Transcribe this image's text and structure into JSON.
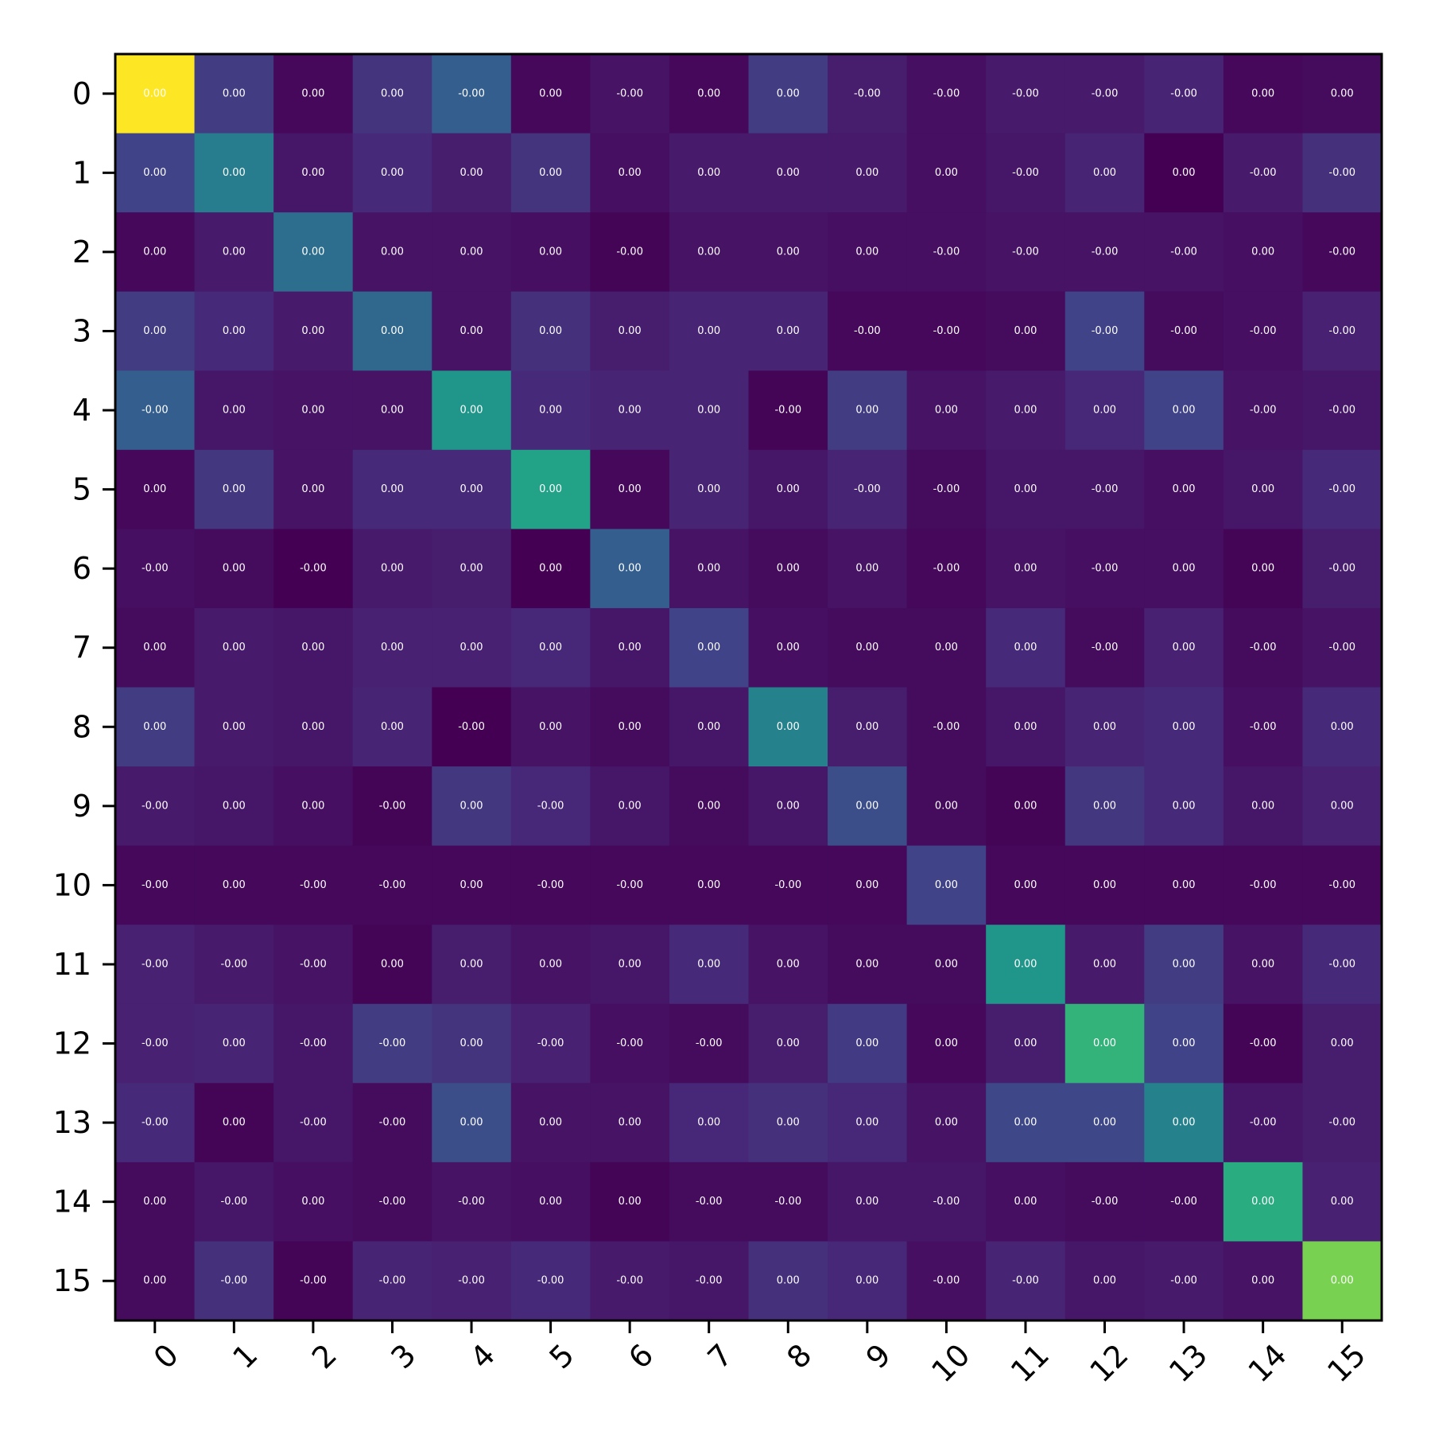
{
  "chart_data": {
    "type": "heatmap",
    "colormap": "viridis",
    "vmin": 0.0,
    "vmax": 1.0,
    "x_tick_labels": [
      "0",
      "1",
      "2",
      "3",
      "4",
      "5",
      "6",
      "7",
      "8",
      "9",
      "10",
      "11",
      "12",
      "13",
      "14",
      "15"
    ],
    "y_tick_labels": [
      "0",
      "1",
      "2",
      "3",
      "4",
      "5",
      "6",
      "7",
      "8",
      "9",
      "10",
      "11",
      "12",
      "13",
      "14",
      "15"
    ],
    "x_tick_rotation_deg": 45,
    "grid": false,
    "legend": "none",
    "labels": [
      [
        "0.00",
        "0.00",
        "0.00",
        "0.00",
        "-0.00",
        "0.00",
        "-0.00",
        "0.00",
        "0.00",
        "-0.00",
        "-0.00",
        "-0.00",
        "-0.00",
        "-0.00",
        "0.00",
        "0.00"
      ],
      [
        "0.00",
        "0.00",
        "0.00",
        "0.00",
        "0.00",
        "0.00",
        "0.00",
        "0.00",
        "0.00",
        "0.00",
        "0.00",
        "-0.00",
        "0.00",
        "0.00",
        "-0.00",
        "-0.00"
      ],
      [
        "0.00",
        "0.00",
        "0.00",
        "0.00",
        "0.00",
        "0.00",
        "-0.00",
        "0.00",
        "0.00",
        "0.00",
        "-0.00",
        "-0.00",
        "-0.00",
        "-0.00",
        "0.00",
        "-0.00"
      ],
      [
        "0.00",
        "0.00",
        "0.00",
        "0.00",
        "0.00",
        "0.00",
        "0.00",
        "0.00",
        "0.00",
        "-0.00",
        "-0.00",
        "0.00",
        "-0.00",
        "-0.00",
        "-0.00",
        "-0.00"
      ],
      [
        "-0.00",
        "0.00",
        "0.00",
        "0.00",
        "0.00",
        "0.00",
        "0.00",
        "0.00",
        "-0.00",
        "0.00",
        "0.00",
        "0.00",
        "0.00",
        "0.00",
        "-0.00",
        "-0.00"
      ],
      [
        "0.00",
        "0.00",
        "0.00",
        "0.00",
        "0.00",
        "0.00",
        "0.00",
        "0.00",
        "0.00",
        "-0.00",
        "-0.00",
        "0.00",
        "-0.00",
        "0.00",
        "0.00",
        "-0.00"
      ],
      [
        "-0.00",
        "0.00",
        "-0.00",
        "0.00",
        "0.00",
        "0.00",
        "0.00",
        "0.00",
        "0.00",
        "0.00",
        "-0.00",
        "0.00",
        "-0.00",
        "0.00",
        "0.00",
        "-0.00"
      ],
      [
        "0.00",
        "0.00",
        "0.00",
        "0.00",
        "0.00",
        "0.00",
        "0.00",
        "0.00",
        "0.00",
        "0.00",
        "0.00",
        "0.00",
        "-0.00",
        "0.00",
        "-0.00",
        "-0.00"
      ],
      [
        "0.00",
        "0.00",
        "0.00",
        "0.00",
        "-0.00",
        "0.00",
        "0.00",
        "0.00",
        "0.00",
        "0.00",
        "-0.00",
        "0.00",
        "0.00",
        "0.00",
        "-0.00",
        "0.00"
      ],
      [
        "-0.00",
        "0.00",
        "0.00",
        "-0.00",
        "0.00",
        "-0.00",
        "0.00",
        "0.00",
        "0.00",
        "0.00",
        "0.00",
        "0.00",
        "0.00",
        "0.00",
        "0.00",
        "0.00"
      ],
      [
        "-0.00",
        "0.00",
        "-0.00",
        "-0.00",
        "0.00",
        "-0.00",
        "-0.00",
        "0.00",
        "-0.00",
        "0.00",
        "0.00",
        "0.00",
        "0.00",
        "0.00",
        "-0.00",
        "-0.00"
      ],
      [
        "-0.00",
        "-0.00",
        "-0.00",
        "0.00",
        "0.00",
        "0.00",
        "0.00",
        "0.00",
        "0.00",
        "0.00",
        "0.00",
        "0.00",
        "0.00",
        "0.00",
        "0.00",
        "-0.00"
      ],
      [
        "-0.00",
        "0.00",
        "-0.00",
        "-0.00",
        "0.00",
        "-0.00",
        "-0.00",
        "-0.00",
        "0.00",
        "0.00",
        "0.00",
        "0.00",
        "0.00",
        "0.00",
        "-0.00",
        "0.00"
      ],
      [
        "-0.00",
        "0.00",
        "-0.00",
        "-0.00",
        "0.00",
        "0.00",
        "0.00",
        "0.00",
        "0.00",
        "0.00",
        "0.00",
        "0.00",
        "0.00",
        "0.00",
        "-0.00",
        "-0.00"
      ],
      [
        "0.00",
        "-0.00",
        "0.00",
        "-0.00",
        "-0.00",
        "0.00",
        "0.00",
        "-0.00",
        "-0.00",
        "0.00",
        "-0.00",
        "0.00",
        "-0.00",
        "-0.00",
        "0.00",
        "0.00"
      ],
      [
        "0.00",
        "-0.00",
        "-0.00",
        "-0.00",
        "-0.00",
        "-0.00",
        "-0.00",
        "-0.00",
        "0.00",
        "0.00",
        "-0.00",
        "-0.00",
        "0.00",
        "-0.00",
        "0.00",
        "0.00"
      ]
    ],
    "intensity": [
      [
        1.0,
        0.18,
        0.02,
        0.15,
        0.3,
        0.02,
        0.05,
        0.02,
        0.18,
        0.08,
        0.04,
        0.07,
        0.07,
        0.1,
        0.02,
        0.03
      ],
      [
        0.2,
        0.42,
        0.06,
        0.12,
        0.08,
        0.15,
        0.04,
        0.07,
        0.07,
        0.07,
        0.04,
        0.06,
        0.1,
        0.0,
        0.07,
        0.14
      ],
      [
        0.02,
        0.07,
        0.36,
        0.05,
        0.05,
        0.04,
        0.01,
        0.05,
        0.05,
        0.04,
        0.04,
        0.05,
        0.05,
        0.05,
        0.04,
        0.02
      ],
      [
        0.18,
        0.12,
        0.07,
        0.34,
        0.05,
        0.14,
        0.08,
        0.1,
        0.1,
        0.02,
        0.02,
        0.03,
        0.2,
        0.03,
        0.04,
        0.09
      ],
      [
        0.3,
        0.06,
        0.05,
        0.05,
        0.52,
        0.12,
        0.1,
        0.1,
        0.01,
        0.18,
        0.05,
        0.07,
        0.11,
        0.2,
        0.05,
        0.06
      ],
      [
        0.02,
        0.16,
        0.05,
        0.12,
        0.12,
        0.58,
        0.02,
        0.1,
        0.06,
        0.1,
        0.03,
        0.06,
        0.06,
        0.04,
        0.06,
        0.12
      ],
      [
        0.04,
        0.03,
        0.0,
        0.07,
        0.08,
        0.0,
        0.3,
        0.05,
        0.03,
        0.05,
        0.02,
        0.05,
        0.04,
        0.04,
        0.01,
        0.08
      ],
      [
        0.03,
        0.07,
        0.06,
        0.09,
        0.09,
        0.11,
        0.06,
        0.2,
        0.04,
        0.03,
        0.03,
        0.12,
        0.03,
        0.09,
        0.03,
        0.05
      ],
      [
        0.18,
        0.07,
        0.06,
        0.1,
        0.0,
        0.05,
        0.03,
        0.06,
        0.44,
        0.08,
        0.03,
        0.06,
        0.1,
        0.12,
        0.04,
        0.12
      ],
      [
        0.07,
        0.06,
        0.04,
        0.01,
        0.16,
        0.11,
        0.06,
        0.03,
        0.06,
        0.24,
        0.03,
        0.01,
        0.16,
        0.12,
        0.06,
        0.09
      ],
      [
        0.02,
        0.02,
        0.02,
        0.02,
        0.02,
        0.02,
        0.02,
        0.02,
        0.02,
        0.02,
        0.2,
        0.02,
        0.02,
        0.02,
        0.02,
        0.02
      ],
      [
        0.09,
        0.07,
        0.05,
        0.01,
        0.08,
        0.05,
        0.06,
        0.12,
        0.05,
        0.03,
        0.03,
        0.52,
        0.07,
        0.18,
        0.05,
        0.12
      ],
      [
        0.09,
        0.1,
        0.06,
        0.18,
        0.15,
        0.09,
        0.04,
        0.03,
        0.08,
        0.17,
        0.02,
        0.08,
        0.65,
        0.2,
        0.01,
        0.08
      ],
      [
        0.12,
        0.01,
        0.06,
        0.03,
        0.24,
        0.05,
        0.05,
        0.11,
        0.14,
        0.11,
        0.05,
        0.22,
        0.22,
        0.44,
        0.06,
        0.08
      ],
      [
        0.03,
        0.06,
        0.04,
        0.03,
        0.05,
        0.04,
        0.01,
        0.03,
        0.03,
        0.06,
        0.06,
        0.04,
        0.03,
        0.03,
        0.62,
        0.09
      ],
      [
        0.03,
        0.14,
        0.01,
        0.1,
        0.09,
        0.12,
        0.07,
        0.06,
        0.14,
        0.11,
        0.04,
        0.1,
        0.06,
        0.07,
        0.05,
        0.8
      ]
    ]
  }
}
